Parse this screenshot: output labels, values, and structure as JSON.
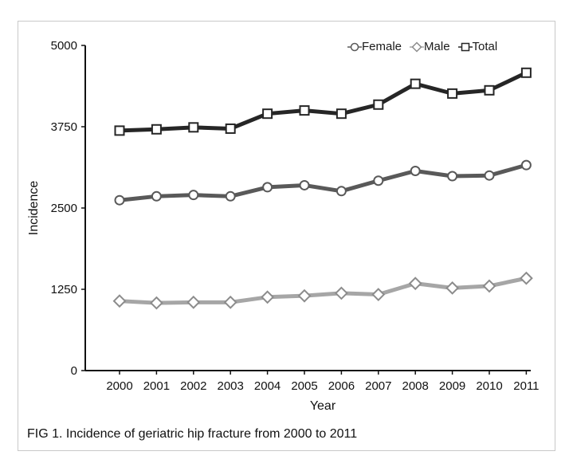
{
  "caption": "FIG 1. Incidence of geriatric hip fracture from 2000 to 2011",
  "legend": {
    "female_label": "Female",
    "male_label": "Male",
    "total_label": "Total"
  },
  "chart_data": {
    "type": "line",
    "title": "",
    "xlabel": "Year",
    "ylabel": "Incidence",
    "ylim": [
      0,
      5000
    ],
    "yticks": [
      0,
      1250,
      2500,
      3750,
      5000
    ],
    "categories": [
      "2000",
      "2001",
      "2002",
      "2003",
      "2004",
      "2005",
      "2006",
      "2007",
      "2008",
      "2009",
      "2010",
      "2011"
    ],
    "legend_position": "top-right",
    "grid": false,
    "series": [
      {
        "name": "Female",
        "marker": "circle",
        "color": "#595959",
        "values": [
          2620,
          2680,
          2700,
          2680,
          2820,
          2850,
          2760,
          2920,
          3070,
          2990,
          3000,
          3160
        ]
      },
      {
        "name": "Male",
        "marker": "diamond",
        "color": "#a6a6a6",
        "values": [
          1070,
          1040,
          1050,
          1050,
          1130,
          1150,
          1190,
          1170,
          1340,
          1270,
          1300,
          1420
        ]
      },
      {
        "name": "Total",
        "marker": "square",
        "color": "#262626",
        "values": [
          3690,
          3710,
          3740,
          3720,
          3950,
          4000,
          3950,
          4090,
          4410,
          4260,
          4310,
          4580
        ]
      }
    ]
  }
}
